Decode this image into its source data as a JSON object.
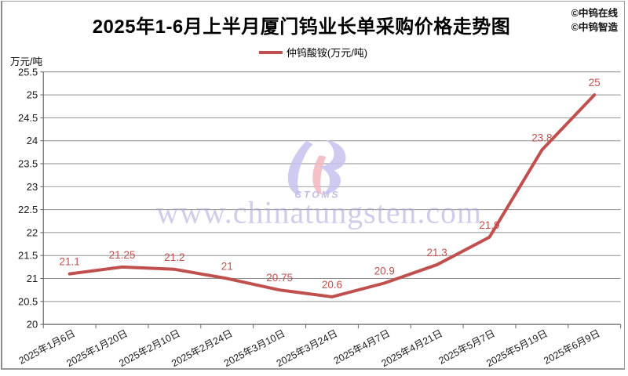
{
  "title": "2025年1-6月上半月厦门钨业长单采购价格走势图",
  "attribution": {
    "line1": "©中钨在线",
    "line2": "©中钨智造"
  },
  "legend": {
    "label": "仲钨酸铵(万元/吨)"
  },
  "y_axis_unit_label": "万元/吨",
  "watermark": {
    "text": "www.chinatungsten.com",
    "logo_caption": "CTOMS"
  },
  "colors": {
    "series": "#c0504d",
    "data_label": "#c0504d",
    "grid": "#8f8f8f",
    "axis": "#666666",
    "watermark_text": "#a9a4d9",
    "logo_purple": "#c7c3ee",
    "logo_pink": "#f3b7bd"
  },
  "chart_data": {
    "type": "line",
    "title": "2025年1-6月上半月厦门钨业长单采购价格走势图",
    "categories": [
      "2025年1月6日",
      "2025年1月20日",
      "2025年2月10日",
      "2025年2月24日",
      "2025年3月10日",
      "2025年3月24日",
      "2025年4月7日",
      "2025年4月21日",
      "2025年5月7日",
      "2025年5月19日",
      "2025年6月9日"
    ],
    "series": [
      {
        "name": "仲钨酸铵(万元/吨)",
        "values": [
          21.1,
          21.25,
          21.2,
          21,
          20.75,
          20.6,
          20.9,
          21.3,
          21.9,
          23.8,
          25
        ]
      }
    ],
    "data_labels": [
      "21.1",
      "21.25",
      "21.2",
      "21",
      "20.75",
      "20.6",
      "20.9",
      "21.3",
      "21.9",
      "23.8",
      "25"
    ],
    "xlabel": "",
    "ylabel": "万元/吨",
    "ylim": [
      20,
      25.5
    ],
    "ytick_step": 0.5,
    "grid": "horizontal",
    "legend_position": "top"
  }
}
